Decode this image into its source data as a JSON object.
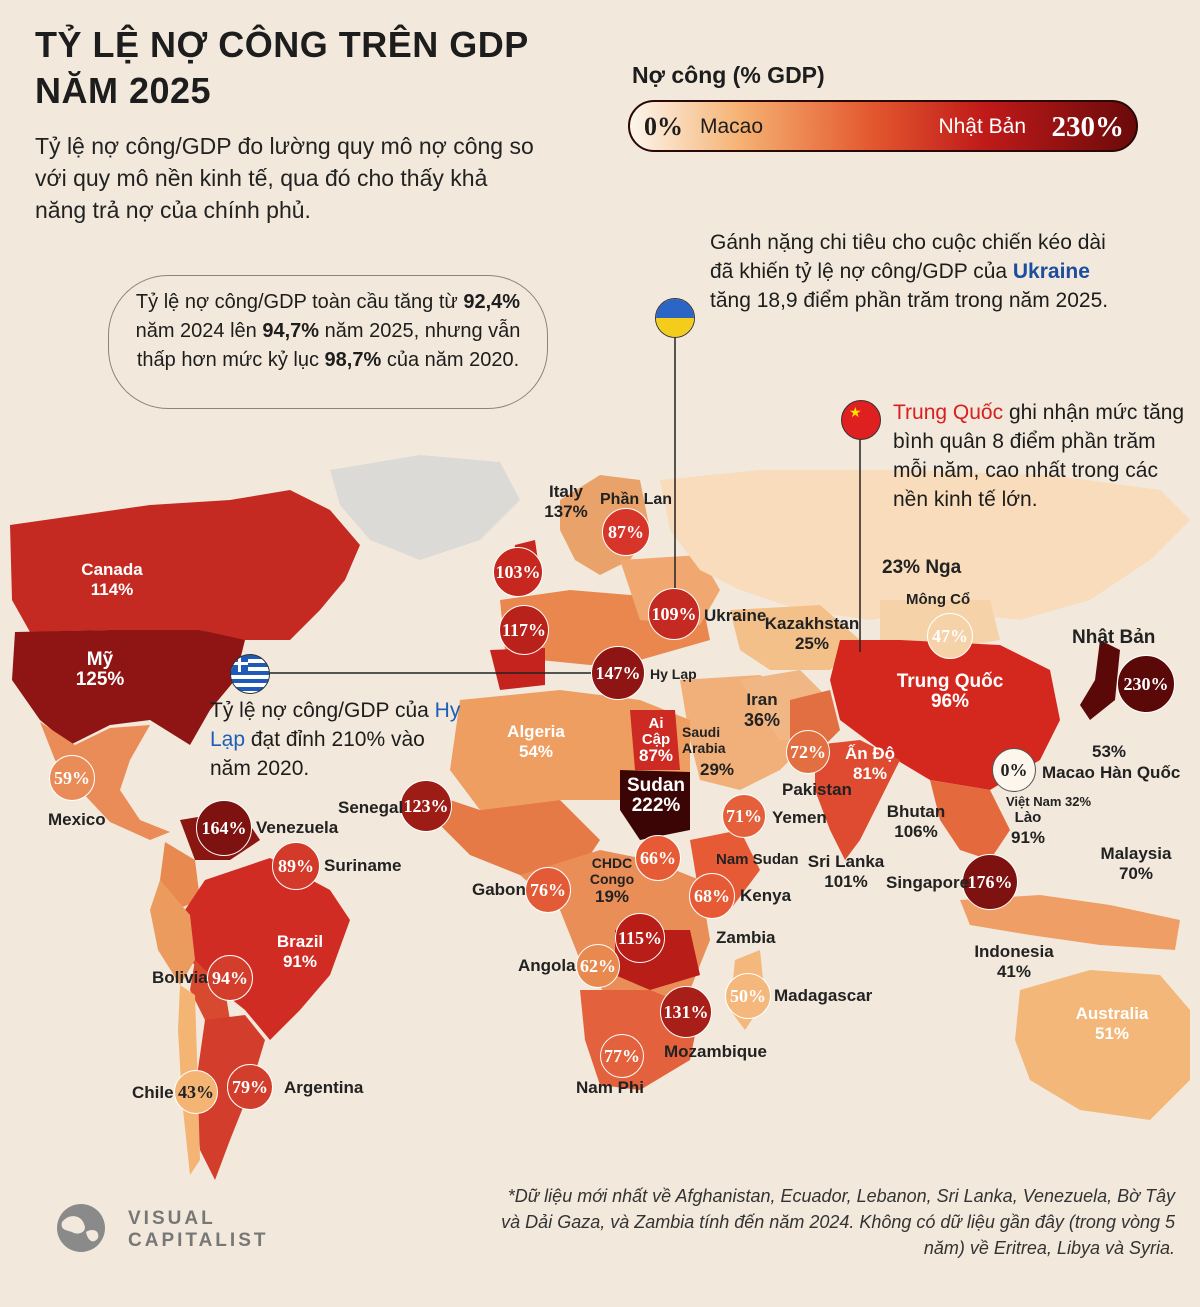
{
  "title_line1": "TỶ LỆ NỢ CÔNG TRÊN GDP",
  "title_line2": "NĂM 2025",
  "subtitle": "Tỷ lệ nợ công/GDP đo lường quy mô nợ công so với quy mô nền kinh tế, qua đó cho thấy khả năng trả nợ của chính phủ.",
  "legend": {
    "title": "Nợ công (% GDP)",
    "min_value": "0%",
    "min_label": "Macao",
    "max_label": "Nhật Bản",
    "max_value": "230%"
  },
  "notes": {
    "global_1": "Tỷ lệ nợ công/GDP toàn cầu tăng từ",
    "global_v1": "92,4%",
    "global_2": " năm 2024 lên ",
    "global_v2": "94,7%",
    "global_3": " năm 2025, nhưng vẫn thấp hơn mức kỷ lục ",
    "global_v3": "98,7%",
    "global_4": " của năm 2020.",
    "ukraine_1": "Gánh nặng chi tiêu cho cuộc chiến kéo dài đã khiến tỷ lệ nợ công/GDP của ",
    "ukraine_name": "Ukraine",
    "ukraine_2": " tăng 18,9 điểm phần trăm trong năm 2025.",
    "china_name": "Trung Quốc",
    "china_1": " ghi nhận mức tăng bình quân 8 điểm phần trăm mỗi năm, cao nhất trong các nền kinh tế lớn.",
    "greece_1": "Tỷ lệ nợ công/GDP của ",
    "greece_name": "Hy Lạp",
    "greece_2": " đạt đỉnh 210% vào năm 2020."
  },
  "countries": {
    "canada": {
      "name": "Canada",
      "value": "114%"
    },
    "usa": {
      "name": "Mỹ",
      "value": "125%"
    },
    "mexico": {
      "name": "Mexico",
      "value": "59%"
    },
    "venezuela": {
      "name": "Venezuela",
      "value": "164%"
    },
    "suriname": {
      "name": "Suriname",
      "value": "89%"
    },
    "brazil": {
      "name": "Brazil",
      "value": "91%"
    },
    "bolivia": {
      "name": "Bolivia",
      "value": "94%"
    },
    "chile": {
      "name": "Chile",
      "value": "43%"
    },
    "argentina": {
      "name": "Argentina",
      "value": "79%"
    },
    "senegal": {
      "name": "Senegal",
      "value": "123%"
    },
    "gabon": {
      "name": "Gabon",
      "value": "76%"
    },
    "drc": {
      "name": "CHDC Congo",
      "value": "19%"
    },
    "angola": {
      "name": "Angola",
      "value": "62%"
    },
    "south_africa": {
      "name": "Nam Phi",
      "value": "77%"
    },
    "algeria": {
      "name": "Algeria",
      "value": "54%"
    },
    "egypt": {
      "name": "Ai Cập",
      "value": "87%"
    },
    "sudan": {
      "name": "Sudan",
      "value": "222%"
    },
    "south_sudan": {
      "name": "Nam Sudan",
      "value": "66%"
    },
    "kenya": {
      "name": "Kenya",
      "value": "68%"
    },
    "zambia": {
      "name": "Zambia",
      "value": "115%"
    },
    "mozambique": {
      "name": "Mozambique",
      "value": "131%"
    },
    "madagascar": {
      "name": "Madagascar",
      "value": "50%"
    },
    "yemen": {
      "name": "Yemen",
      "value": "71%"
    },
    "saudi": {
      "name": "Saudi Arabia",
      "value": "29%"
    },
    "iran": {
      "name": "Iran",
      "value": "36%"
    },
    "pakistan": {
      "name": "Pakistan",
      "value": "72%"
    },
    "india": {
      "name": "Ấn Độ",
      "value": "81%"
    },
    "sri_lanka": {
      "name": "Sri Lanka",
      "value": "101%"
    },
    "bhutan": {
      "name": "Bhutan",
      "value": "106%"
    },
    "italy": {
      "name": "Italy",
      "value": "137%"
    },
    "finland": {
      "name": "Phần Lan",
      "value": "87%"
    },
    "uk": {
      "value": "103%"
    },
    "france": {
      "value": "117%"
    },
    "ukraine": {
      "name": "Ukraine",
      "value": "109%"
    },
    "greece": {
      "name": "Hy Lạp",
      "value": "147%"
    },
    "kazakhstan": {
      "name": "Kazakhstan",
      "value": "25%"
    },
    "russia": {
      "name": "Nga",
      "value": "23%"
    },
    "mongolia": {
      "name": "Mông Cổ",
      "value": "47%"
    },
    "china": {
      "name": "Trung Quốc",
      "value": "96%"
    },
    "japan": {
      "name": "Nhật Bản",
      "value": "230%"
    },
    "korea": {
      "name": "Hàn Quốc",
      "value": "53%"
    },
    "macao": {
      "name": "Macao",
      "value": "0%"
    },
    "vietnam": {
      "name": "Việt Nam",
      "value": "32%"
    },
    "laos": {
      "name": "Lào",
      "value": "91%"
    },
    "malaysia": {
      "name": "Malaysia",
      "value": "70%"
    },
    "singapore": {
      "name": "Singapore",
      "value": "176%"
    },
    "indonesia": {
      "name": "Indonesia",
      "value": "41%"
    },
    "australia": {
      "name": "Australia",
      "value": "51%"
    }
  },
  "footnote": "*Dữ liệu mới nhất về Afghanistan, Ecuador, Lebanon, Sri Lanka, Venezuela, Bờ Tây và Dải Gaza, và Zambia tính đến năm 2024. Không có dữ liệu gần đây (trong vòng 5 năm) về Eritrea, Libya và Syria.",
  "brand": {
    "line1": "VISUAL",
    "line2": "CAPITALIST"
  },
  "colors": {
    "background": "#f2e9dc",
    "high": "#6a0a0a",
    "mid": "#d8352a",
    "low": "#f5b172",
    "ukraine": "#1c4d9e",
    "china": "#d81e1e"
  }
}
